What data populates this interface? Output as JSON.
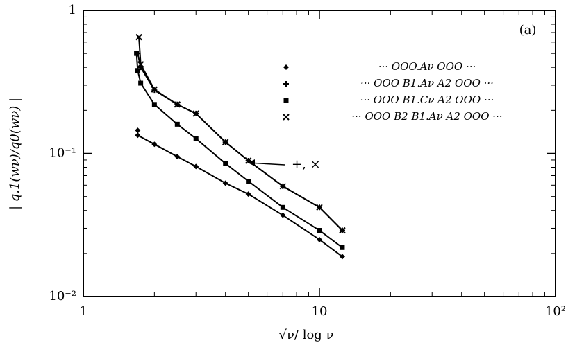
{
  "chart_data": {
    "type": "line",
    "log_x": true,
    "log_y": true,
    "xlabel": "√ν/ log ν",
    "ylabel": "| q.1(wν)/q0(wν) |",
    "panel_label": "(a)",
    "annotation": "+, ×",
    "xlim": [
      1,
      100
    ],
    "ylim": [
      0.01,
      1
    ],
    "xticks": [
      1,
      10,
      {
        "value": 100,
        "label": "10²"
      }
    ],
    "yticks": [
      {
        "value": 0.01,
        "label": "10⁻²"
      },
      {
        "value": 0.1,
        "label": "10⁻¹"
      },
      1
    ],
    "xminorticks": [
      2,
      3,
      4,
      5,
      6,
      7,
      8,
      9,
      20,
      30,
      40,
      50,
      60,
      70,
      80,
      90
    ],
    "yminorticks": [
      0.02,
      0.03,
      0.04,
      0.05,
      0.06,
      0.07,
      0.08,
      0.09,
      0.2,
      0.3,
      0.4,
      0.5,
      0.6,
      0.7,
      0.8,
      0.9
    ],
    "series": [
      {
        "name": "··· OOO.Aν OOO ···",
        "marker": "diamond",
        "color": "#000000",
        "x": [
          1.7,
          1.7,
          2,
          2.5,
          3,
          4,
          5,
          7,
          10,
          12.5
        ],
        "values": [
          0.145,
          0.134,
          0.116,
          0.095,
          0.081,
          0.062,
          0.052,
          0.037,
          0.025,
          0.019
        ]
      },
      {
        "name": "··· OOO B1.Aν A2 OOO ···",
        "marker": "plus",
        "color": "#000000",
        "x": [
          1.7,
          1.75,
          2,
          2.5,
          3,
          4,
          5,
          7,
          10,
          12.5
        ],
        "values": [
          0.5,
          0.4,
          0.277,
          0.22,
          0.19,
          0.12,
          0.089,
          0.059,
          0.042,
          0.029
        ]
      },
      {
        "name": "··· OOO B1.Cν A2 OOO ···",
        "marker": "square",
        "color": "#000000",
        "x": [
          1.68,
          1.7,
          1.75,
          2,
          2.5,
          3,
          4,
          5,
          7,
          10,
          12.5
        ],
        "values": [
          0.5,
          0.38,
          0.31,
          0.22,
          0.16,
          0.127,
          0.085,
          0.064,
          0.042,
          0.029,
          0.022
        ]
      },
      {
        "name": "··· OOO B2 B1.Aν A2 OOO ···",
        "marker": "cross",
        "color": "#000000",
        "x": [
          1.72,
          1.75,
          2,
          2.5,
          3,
          4,
          5,
          7,
          10,
          12.5
        ],
        "values": [
          0.65,
          0.42,
          0.28,
          0.22,
          0.19,
          0.12,
          0.089,
          0.059,
          0.042,
          0.029
        ]
      }
    ]
  }
}
